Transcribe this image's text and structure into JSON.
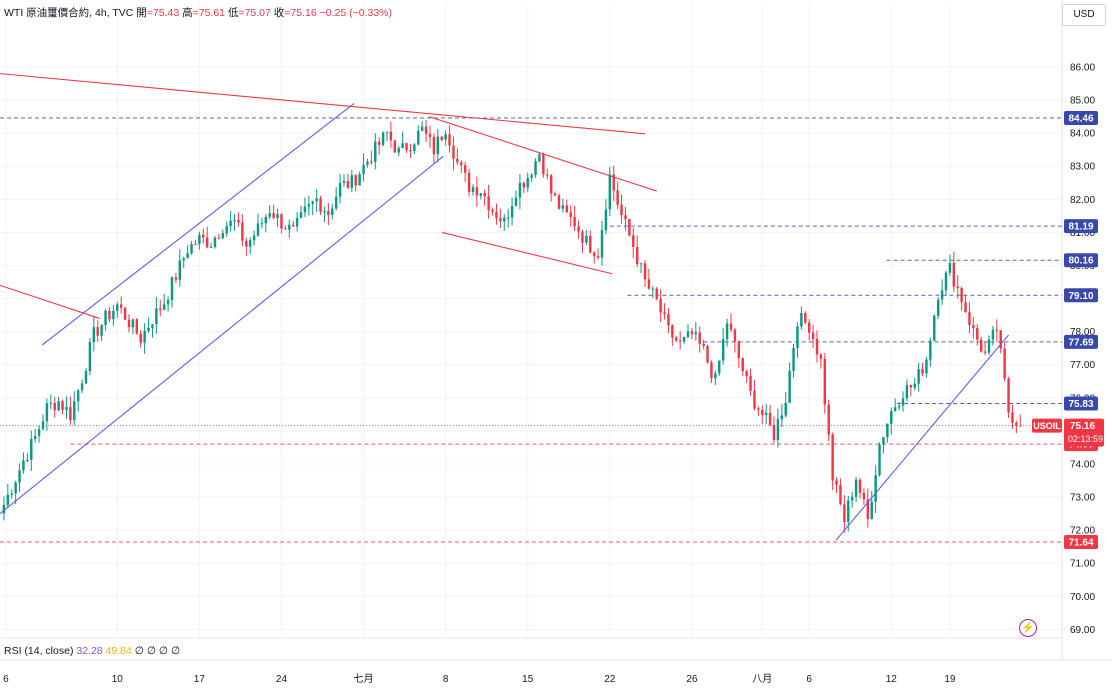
{
  "legend": {
    "symbol": "WTI 原油璽價合約, 4h, TVC",
    "open_label": "開",
    "open": "=75.43",
    "high_label": "高",
    "high": "=75.61",
    "low_label": "低",
    "low": "=75.07",
    "close_label": "收",
    "close": "=75.16",
    "change": "−0.25 (−0.33%)"
  },
  "currency": "USD",
  "rsi_legend": {
    "label": "RSI (14, close)",
    "value1": "32.28",
    "value2": "49.84",
    "placeholders": "∅ ∅ ∅ ∅"
  },
  "colors": {
    "up": "#089981",
    "down": "#f23645",
    "trend_blue": "#5b5fe8",
    "trend_red": "#f23645"
  },
  "chart_data": {
    "type": "candlestick",
    "timeframe": "4h",
    "ylim": [
      68.8,
      87.3
    ],
    "y_ticks": [
      69,
      70,
      71,
      72,
      73,
      74,
      75,
      76,
      77,
      78,
      79,
      80,
      81,
      82,
      83,
      84,
      85,
      86
    ],
    "y_tick_labels": [
      "69.00",
      "70.00",
      "71.00",
      "72.00",
      "73.00",
      "74.00",
      "75.00",
      "76.00",
      "77.00",
      "78.00",
      "79.00",
      "80.00",
      "81.00",
      "82.00",
      "83.00",
      "84.00",
      "85.00",
      "86.00"
    ],
    "x_labels": [
      {
        "x": 0.5,
        "label": "6"
      },
      {
        "x": 10,
        "label": "10"
      },
      {
        "x": 17,
        "label": "17"
      },
      {
        "x": 24,
        "label": "24"
      },
      {
        "x": 31,
        "label": "七月"
      },
      {
        "x": 38,
        "label": "8"
      },
      {
        "x": 45,
        "label": "15"
      },
      {
        "x": 52,
        "label": "22"
      },
      {
        "x": 59,
        "label": "26"
      },
      {
        "x": 65,
        "label": "八月"
      },
      {
        "x": 69,
        "label": "6"
      },
      {
        "x": 76,
        "label": "12"
      },
      {
        "x": 81,
        "label": "19"
      }
    ],
    "x_range": [
      0,
      88
    ],
    "anchors": [
      [
        0,
        72.5
      ],
      [
        1,
        73.3
      ],
      [
        2,
        74.1
      ],
      [
        3,
        74.8
      ],
      [
        4,
        75.7
      ],
      [
        5,
        75.9
      ],
      [
        6,
        75.5
      ],
      [
        7,
        76.6
      ],
      [
        8,
        77.9
      ],
      [
        9,
        78.4
      ],
      [
        10,
        78.8
      ],
      [
        11,
        78.3
      ],
      [
        12,
        77.8
      ],
      [
        13,
        78.4
      ],
      [
        14,
        78.9
      ],
      [
        15,
        79.7
      ],
      [
        16,
        80.5
      ],
      [
        17,
        80.8
      ],
      [
        18,
        80.7
      ],
      [
        19,
        81.2
      ],
      [
        20,
        81.3
      ],
      [
        21,
        80.6
      ],
      [
        22,
        81.1
      ],
      [
        23,
        81.7
      ],
      [
        24,
        81.3
      ],
      [
        25,
        81.0
      ],
      [
        26,
        81.6
      ],
      [
        27,
        82.0
      ],
      [
        28,
        81.6
      ],
      [
        29,
        82.4
      ],
      [
        30,
        82.5
      ],
      [
        31,
        83.0
      ],
      [
        32,
        83.5
      ],
      [
        33,
        84.0
      ],
      [
        34,
        83.4
      ],
      [
        35,
        83.7
      ],
      [
        36,
        84.1
      ],
      [
        37,
        83.5
      ],
      [
        38,
        84.2
      ],
      [
        39,
        83.1
      ],
      [
        40,
        82.4
      ],
      [
        41,
        82.3
      ],
      [
        42,
        81.7
      ],
      [
        43,
        81.3
      ],
      [
        44,
        82.3
      ],
      [
        45,
        82.7
      ],
      [
        46,
        83.4
      ],
      [
        47,
        82.2
      ],
      [
        48,
        81.6
      ],
      [
        49,
        81.3
      ],
      [
        50,
        80.7
      ],
      [
        51,
        80.4
      ],
      [
        52,
        82.7
      ],
      [
        53,
        81.5
      ],
      [
        54,
        80.6
      ],
      [
        55,
        79.5
      ],
      [
        56,
        78.9
      ],
      [
        57,
        78.0
      ],
      [
        58,
        77.6
      ],
      [
        59,
        77.9
      ],
      [
        60,
        77.4
      ],
      [
        61,
        76.5
      ],
      [
        62,
        78.3
      ],
      [
        63,
        77.2
      ],
      [
        64,
        76.1
      ],
      [
        65,
        75.5
      ],
      [
        66,
        74.9
      ],
      [
        67,
        76.0
      ],
      [
        68,
        78.4
      ],
      [
        69,
        78.2
      ],
      [
        70,
        77.1
      ],
      [
        71,
        73.6
      ],
      [
        72,
        72.3
      ],
      [
        73,
        73.6
      ],
      [
        74,
        72.3
      ],
      [
        75,
        74.6
      ],
      [
        76,
        75.6
      ],
      [
        77,
        76.2
      ],
      [
        78,
        76.4
      ],
      [
        79,
        77.2
      ],
      [
        80,
        79.2
      ],
      [
        81,
        79.9
      ],
      [
        82,
        79.0
      ],
      [
        83,
        78.0
      ],
      [
        84,
        77.3
      ],
      [
        85,
        78.1
      ],
      [
        86,
        75.6
      ],
      [
        87,
        75.16
      ]
    ],
    "horizontal_levels": [
      {
        "value": 84.46,
        "label": "84.46",
        "color": "#3949ab",
        "style": "dashed",
        "from": 0
      },
      {
        "value": 81.19,
        "label": "81.19",
        "color": "#3949ab",
        "style": "dashed",
        "from": 52
      },
      {
        "value": 80.16,
        "label": "80.16",
        "color": "#3949ab",
        "style": "dashed",
        "from": 75.6
      },
      {
        "value": 79.1,
        "label": "79.10",
        "color": "#3949ab",
        "style": "dashed",
        "from": 53.5
      },
      {
        "value": 77.69,
        "label": "77.69",
        "color": "#3949ab",
        "style": "dashed",
        "from": 60
      },
      {
        "value": 75.83,
        "label": "75.83",
        "color": "#3949ab",
        "style": "dashed",
        "from": 76.5
      },
      {
        "value": 74.6,
        "label": "74.60",
        "color": "#f23645",
        "style": "dashed",
        "from": 6,
        "red": true
      },
      {
        "value": 71.64,
        "label": "71.64",
        "color": "#f23645",
        "style": "dashed",
        "from": 0,
        "red": true
      }
    ],
    "last_price": {
      "symbol": "USOIL",
      "value": 75.16,
      "label": "75.16",
      "countdown": "02:13:59"
    },
    "trendlines": [
      {
        "color": "#5b5fe8",
        "points": [
          [
            0,
            72.5
          ],
          [
            37.8,
            83.3
          ]
        ]
      },
      {
        "color": "#5b5fe8",
        "points": [
          [
            3.6,
            77.6
          ],
          [
            30.2,
            84.9
          ]
        ]
      },
      {
        "color": "#f23645",
        "points": [
          [
            0,
            85.8
          ],
          [
            55,
            83.98
          ]
        ]
      },
      {
        "color": "#f23645",
        "points": [
          [
            0,
            79.4
          ],
          [
            8.5,
            78.4
          ]
        ]
      },
      {
        "color": "#f23645",
        "points": [
          [
            36.6,
            84.5
          ],
          [
            56,
            82.25
          ]
        ]
      },
      {
        "color": "#f23645",
        "points": [
          [
            37.7,
            81.0
          ],
          [
            52.2,
            79.75
          ]
        ]
      },
      {
        "color": "#5b5fe8",
        "points": [
          [
            71.3,
            71.7
          ],
          [
            86,
            77.9
          ]
        ]
      }
    ]
  }
}
